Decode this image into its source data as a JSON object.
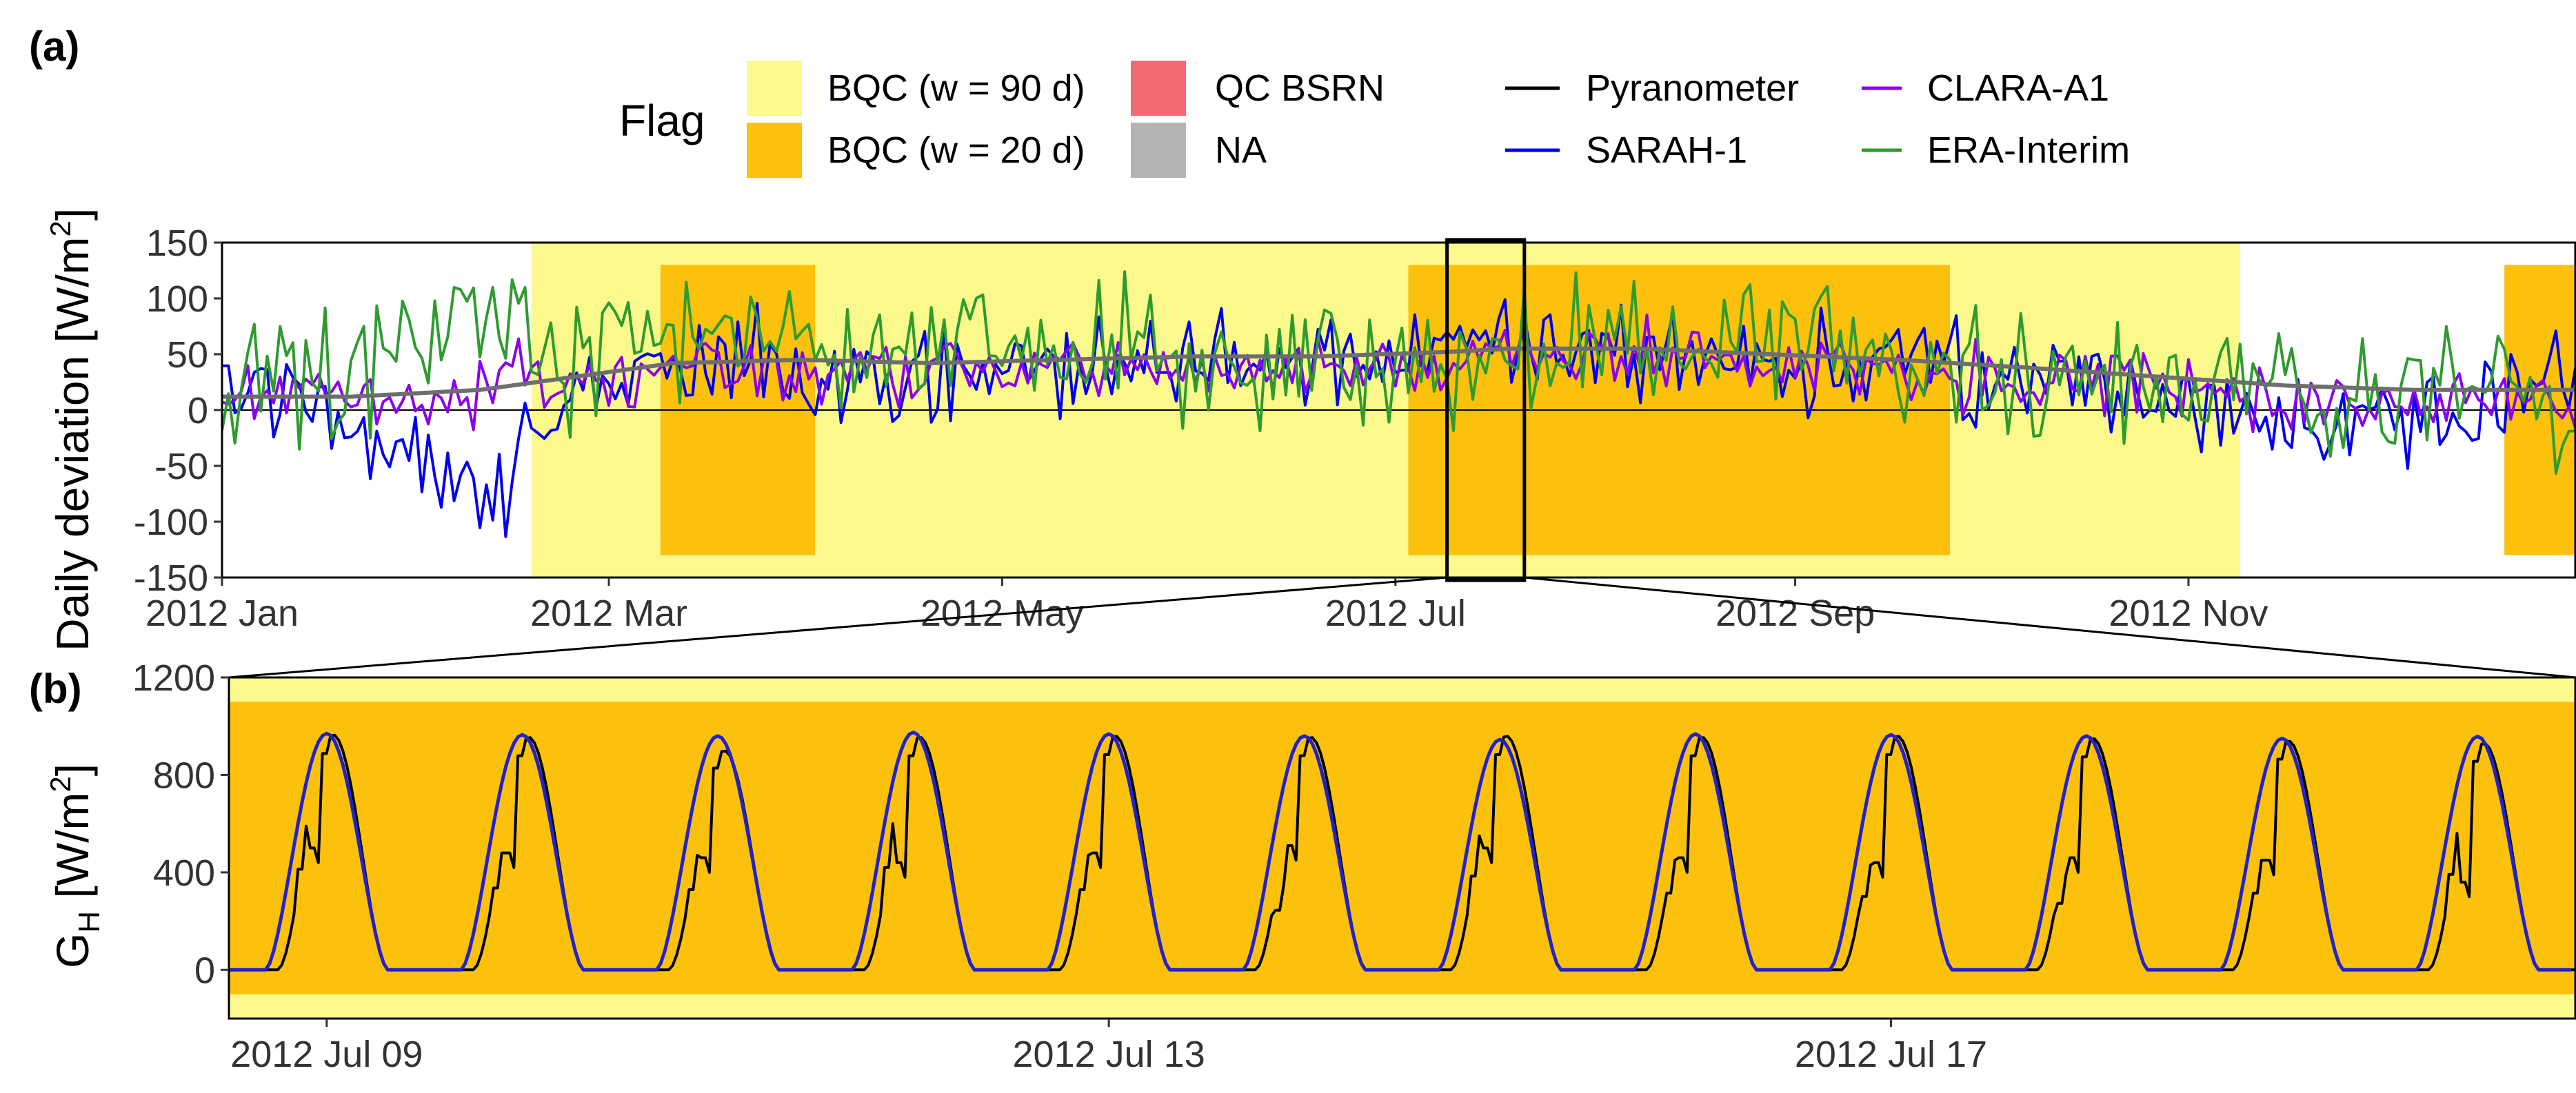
{
  "panel_labels": {
    "a": "(a)",
    "b": "(b)"
  },
  "legend": {
    "flag_title": "Flag",
    "flags": [
      {
        "label": "BQC (w = 90 d)",
        "color": "#FBF98C"
      },
      {
        "label": "BQC (w = 20 d)",
        "color": "#FBC10D"
      },
      {
        "label": "QC BSRN",
        "color": "#F56A72"
      },
      {
        "label": "NA",
        "color": "#B3B3B3"
      }
    ],
    "series": [
      {
        "label": "Pyranometer",
        "color": "#000000"
      },
      {
        "label": "SARAH-1",
        "color": "#0000EE"
      },
      {
        "label": "CLARA-A1",
        "color": "#8B00EE"
      },
      {
        "label": "ERA-Interim",
        "color": "#2E9B2E"
      }
    ]
  },
  "chart_data": [
    {
      "type": "line",
      "panel": "(a)",
      "ylabel": "Daily deviation [W/m2]",
      "ylabel_main": "Daily deviation [W/m",
      "ylabel_sup": "2",
      "ylabel_tail": "]",
      "x_domain_days": [
        0,
        365
      ],
      "ylim": [
        -150,
        150
      ],
      "yticks": [
        150,
        100,
        50,
        0,
        -50,
        -100,
        -150
      ],
      "ytick_labels": [
        "150",
        "100",
        "50",
        "0",
        "-50",
        "-100",
        "-150"
      ],
      "xticks": [
        {
          "label": "2012 Jan",
          "day": 0
        },
        {
          "label": "2012 Mar",
          "day": 60
        },
        {
          "label": "2012 May",
          "day": 121
        },
        {
          "label": "2012 Jul",
          "day": 182
        },
        {
          "label": "2012 Sep",
          "day": 244
        },
        {
          "label": "2012 Nov",
          "day": 305
        }
      ],
      "flag_regions": [
        {
          "flag": "BQC (w = 90 d)",
          "start": 48,
          "end": 313,
          "range": [
            -150,
            150
          ]
        },
        {
          "flag": "BQC (w = 20 d)",
          "start": 68,
          "end": 92,
          "range": [
            -130,
            130
          ]
        },
        {
          "flag": "BQC (w = 20 d)",
          "start": 184,
          "end": 268,
          "range": [
            -130,
            130
          ]
        },
        {
          "flag": "BQC (w = 20 d)",
          "start": 354,
          "end": 366,
          "range": [
            -130,
            130
          ]
        }
      ],
      "zoom_box": {
        "start": 190,
        "end": 202
      },
      "series": [
        {
          "name": "SARAH-1",
          "color": "#0000EE",
          "anchors": [
            [
              0,
              20
            ],
            [
              8,
              15
            ],
            [
              18,
              0
            ],
            [
              25,
              -30
            ],
            [
              32,
              -40
            ],
            [
              38,
              -60
            ],
            [
              42,
              -70
            ],
            [
              45,
              -45
            ],
            [
              50,
              -10
            ],
            [
              55,
              10
            ],
            [
              62,
              25
            ],
            [
              72,
              40
            ],
            [
              80,
              45
            ],
            [
              88,
              30
            ],
            [
              96,
              35
            ],
            [
              104,
              20
            ],
            [
              115,
              30
            ],
            [
              125,
              35
            ],
            [
              140,
              40
            ],
            [
              155,
              45
            ],
            [
              170,
              45
            ],
            [
              185,
              45
            ],
            [
              195,
              55
            ],
            [
              210,
              55
            ],
            [
              225,
              50
            ],
            [
              240,
              45
            ],
            [
              255,
              40
            ],
            [
              270,
              30
            ],
            [
              285,
              25
            ],
            [
              300,
              15
            ],
            [
              310,
              5
            ],
            [
              318,
              -10
            ],
            [
              325,
              -20
            ],
            [
              330,
              -15
            ],
            [
              338,
              5
            ],
            [
              350,
              15
            ],
            [
              365,
              25
            ]
          ],
          "amp": 22
        },
        {
          "name": "CLARA-A1",
          "color": "#8B00EE",
          "anchors": [
            [
              0,
              15
            ],
            [
              20,
              15
            ],
            [
              30,
              5
            ],
            [
              40,
              15
            ],
            [
              45,
              40
            ],
            [
              50,
              20
            ],
            [
              60,
              30
            ],
            [
              75,
              40
            ],
            [
              90,
              35
            ],
            [
              110,
              35
            ],
            [
              130,
              40
            ],
            [
              150,
              35
            ],
            [
              170,
              35
            ],
            [
              185,
              40
            ],
            [
              200,
              50
            ],
            [
              215,
              50
            ],
            [
              230,
              45
            ],
            [
              250,
              45
            ],
            [
              265,
              35
            ],
            [
              280,
              25
            ],
            [
              300,
              20
            ],
            [
              315,
              10
            ],
            [
              330,
              5
            ],
            [
              345,
              15
            ],
            [
              365,
              15
            ]
          ],
          "amp": 14
        },
        {
          "name": "ERA-Interim",
          "color": "#2E9B2E",
          "anchors": [
            [
              0,
              15
            ],
            [
              10,
              20
            ],
            [
              20,
              35
            ],
            [
              30,
              60
            ],
            [
              40,
              80
            ],
            [
              45,
              90
            ],
            [
              50,
              40
            ],
            [
              58,
              35
            ],
            [
              65,
              60
            ],
            [
              75,
              70
            ],
            [
              85,
              70
            ],
            [
              95,
              50
            ],
            [
              105,
              55
            ],
            [
              115,
              70
            ],
            [
              125,
              55
            ],
            [
              140,
              50
            ],
            [
              155,
              45
            ],
            [
              170,
              45
            ],
            [
              180,
              30
            ],
            [
              190,
              50
            ],
            [
              205,
              60
            ],
            [
              220,
              55
            ],
            [
              235,
              65
            ],
            [
              250,
              55
            ],
            [
              265,
              40
            ],
            [
              280,
              35
            ],
            [
              295,
              30
            ],
            [
              310,
              25
            ],
            [
              325,
              15
            ],
            [
              340,
              15
            ],
            [
              355,
              20
            ],
            [
              365,
              20
            ]
          ],
          "amp": 30
        },
        {
          "name": "Smooth (grey)",
          "color": "#6E6E6E",
          "anchors": [
            [
              0,
              12
            ],
            [
              20,
              12
            ],
            [
              30,
              15
            ],
            [
              40,
              18
            ],
            [
              55,
              30
            ],
            [
              70,
              42
            ],
            [
              90,
              45
            ],
            [
              110,
              42
            ],
            [
              130,
              45
            ],
            [
              150,
              48
            ],
            [
              170,
              48
            ],
            [
              190,
              52
            ],
            [
              200,
              55
            ],
            [
              220,
              55
            ],
            [
              240,
              50
            ],
            [
              260,
              45
            ],
            [
              280,
              38
            ],
            [
              300,
              30
            ],
            [
              320,
              22
            ],
            [
              340,
              18
            ],
            [
              365,
              18
            ]
          ],
          "amp": 0
        }
      ]
    },
    {
      "type": "line",
      "panel": "(b)",
      "ylabel": "GH [W/m2]",
      "ylabel_g": "G",
      "ylabel_sub": "H",
      "ylabel_unit": " [W/m",
      "ylabel_sup": "2",
      "ylabel_tail": "]",
      "x_domain_days": [
        0,
        12
      ],
      "ylim": [
        -200,
        1200
      ],
      "yticks": [
        1200,
        800,
        400,
        0
      ],
      "ytick_labels": [
        "1200",
        "800",
        "400",
        "0"
      ],
      "xticks": [
        {
          "label": "2012 Jul 09",
          "day": 0.5
        },
        {
          "label": "2012 Jul 13",
          "day": 4.5
        },
        {
          "label": "2012 Jul 17",
          "day": 8.5
        }
      ],
      "flag_regions": [
        {
          "flag": "BQC (w = 90 d)",
          "start": 0,
          "end": 12,
          "range": [
            -200,
            1200
          ]
        },
        {
          "flag": "BQC (w = 20 d)",
          "start": 0,
          "end": 12,
          "range": [
            -100,
            1100
          ]
        }
      ],
      "daily_peaks_sarah": [
        970,
        965,
        960,
        975,
        968,
        960,
        945,
        968,
        965,
        960,
        950,
        958
      ],
      "daily_pyranometer": [
        {
          "pre": 590,
          "dip": 440,
          "peak": 965
        },
        {
          "pre": 480,
          "dip": 420,
          "peak": 955
        },
        {
          "pre": 470,
          "dip": 400,
          "peak": 900
        },
        {
          "pre": 600,
          "dip": 380,
          "peak": 955
        },
        {
          "pre": 470,
          "dip": 420,
          "peak": 960
        },
        {
          "pre": 350,
          "dip": 450,
          "peak": 955
        },
        {
          "pre": 550,
          "dip": 440,
          "peak": 960
        },
        {
          "pre": 450,
          "dip": 400,
          "peak": 955
        },
        {
          "pre": 430,
          "dip": 380,
          "peak": 960
        },
        {
          "pre": 390,
          "dip": 400,
          "peak": 950
        },
        {
          "pre": 450,
          "dip": 390,
          "peak": 940
        },
        {
          "pre": 560,
          "dip": 300,
          "peak": 930
        }
      ],
      "series": [
        {
          "name": "Pyranometer",
          "color": "#000000"
        },
        {
          "name": "SARAH-1",
          "color": "#2222CC"
        }
      ]
    }
  ]
}
